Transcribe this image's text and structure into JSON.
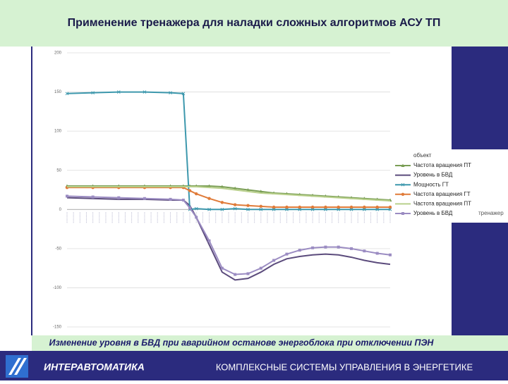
{
  "slide": {
    "title": "Применение тренажера для наладки сложных алгоритмов АСУ ТП",
    "caption": "Изменение уровня в БВД при аварийном останове энергоблока при отключении ПЭН",
    "company": "ИНТЕРАВТОМАТИКА",
    "tagline": "КОМПЛЕКСНЫЕ СИСТЕМЫ УПРАВЛЕНИЯ В ЭНЕРГЕТИКЕ"
  },
  "chart_data": {
    "type": "line",
    "x": [
      0,
      8,
      16,
      24,
      32,
      36,
      38,
      40,
      44,
      48,
      52,
      56,
      60,
      64,
      68,
      72,
      76,
      80,
      84,
      88,
      92,
      96,
      100
    ],
    "xlim": [
      0,
      100
    ],
    "ylim": [
      -150,
      200
    ],
    "yticks": [
      -150,
      -100,
      -50,
      0,
      50,
      100,
      150,
      200
    ],
    "grid": true,
    "legend_groups": [
      "объект",
      "тренажер"
    ],
    "series": [
      {
        "name": "Частота вращения ПТ",
        "color": "#7a9e55",
        "marker": "triangle",
        "values": [
          30,
          30,
          30,
          30,
          30,
          30,
          30,
          30,
          30,
          29,
          27,
          25,
          23,
          21,
          20,
          19,
          18,
          17,
          16,
          15,
          14,
          13,
          12
        ]
      },
      {
        "name": "Уровень в БВД",
        "color": "#5b4b7c",
        "marker": "none",
        "values": [
          15,
          14,
          13,
          13,
          12,
          12,
          5,
          -10,
          -45,
          -80,
          -90,
          -88,
          -80,
          -70,
          -63,
          -60,
          -58,
          -57,
          -58,
          -61,
          -65,
          -68,
          -70
        ]
      },
      {
        "name": "Мощность ГТ",
        "color": "#3d98ad",
        "marker": "cross",
        "values": [
          148,
          149,
          150,
          150,
          149,
          148,
          0,
          1,
          0,
          0,
          1,
          0,
          0,
          0,
          0,
          0,
          0,
          0,
          0,
          0,
          0,
          0,
          0
        ]
      },
      {
        "name": "Частота вращения ГТ",
        "color": "#e07b39",
        "marker": "circle",
        "values": [
          28,
          28,
          28,
          28,
          28,
          28,
          24,
          20,
          14,
          9,
          6,
          5,
          4,
          3,
          3,
          3,
          3,
          3,
          3,
          3,
          3,
          3,
          3
        ]
      },
      {
        "name": "Частота вращения ПТ",
        "color": "#b9d08c",
        "marker": "none",
        "values": [
          29,
          29,
          29,
          29,
          29,
          29,
          29,
          29,
          28,
          27,
          25,
          23,
          21,
          20,
          19,
          18,
          17,
          16,
          15,
          14,
          13,
          12,
          11
        ]
      },
      {
        "name": "Уровень в БВД",
        "color": "#9b8cc2",
        "marker": "square",
        "values": [
          17,
          16,
          15,
          14,
          13,
          12,
          2,
          -10,
          -40,
          -75,
          -83,
          -82,
          -75,
          -65,
          -57,
          -52,
          -49,
          -48,
          -48,
          -50,
          -53,
          -56,
          -58
        ]
      }
    ]
  }
}
